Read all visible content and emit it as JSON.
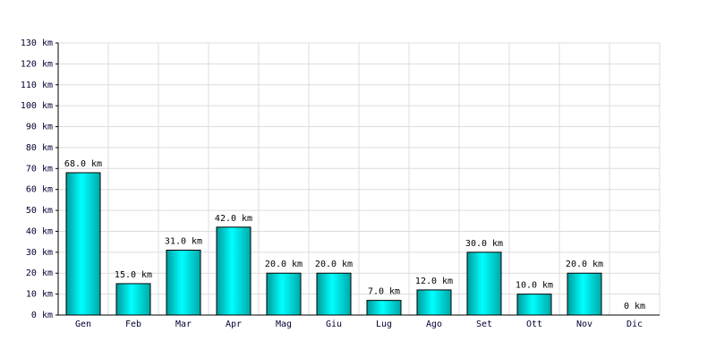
{
  "chart_data": {
    "type": "bar",
    "categories": [
      "Gen",
      "Feb",
      "Mar",
      "Apr",
      "Mag",
      "Giu",
      "Lug",
      "Ago",
      "Set",
      "Ott",
      "Nov",
      "Dic"
    ],
    "values": [
      68,
      15,
      31,
      42,
      20,
      20,
      7,
      12,
      30,
      10,
      20,
      0
    ],
    "value_labels": [
      "68.0 km",
      "15.0 km",
      "31.0 km",
      "42.0 km",
      "20.0 km",
      "20.0 km",
      "7.0 km",
      "12.0 km",
      "30.0 km",
      "10.0 km",
      "20.0 km",
      "0 km"
    ],
    "color": "#00cccc",
    "ylim": [
      0,
      130
    ],
    "yticks": [
      {
        "value": 0,
        "label": "0 km"
      },
      {
        "value": 10,
        "label": "10 km"
      },
      {
        "value": 20,
        "label": "20 km"
      },
      {
        "value": 30,
        "label": "30 km"
      },
      {
        "value": 40,
        "label": "40 km"
      },
      {
        "value": 50,
        "label": "50 km"
      },
      {
        "value": 60,
        "label": "60 km"
      },
      {
        "value": 70,
        "label": "70 km"
      },
      {
        "value": 80,
        "label": "80 km"
      },
      {
        "value": 90,
        "label": "90 km"
      },
      {
        "value": 100,
        "label": "100 km"
      },
      {
        "value": 110,
        "label": "110 km"
      },
      {
        "value": 120,
        "label": "120 km"
      },
      {
        "value": 130,
        "label": "130 km"
      }
    ],
    "grid": true
  }
}
